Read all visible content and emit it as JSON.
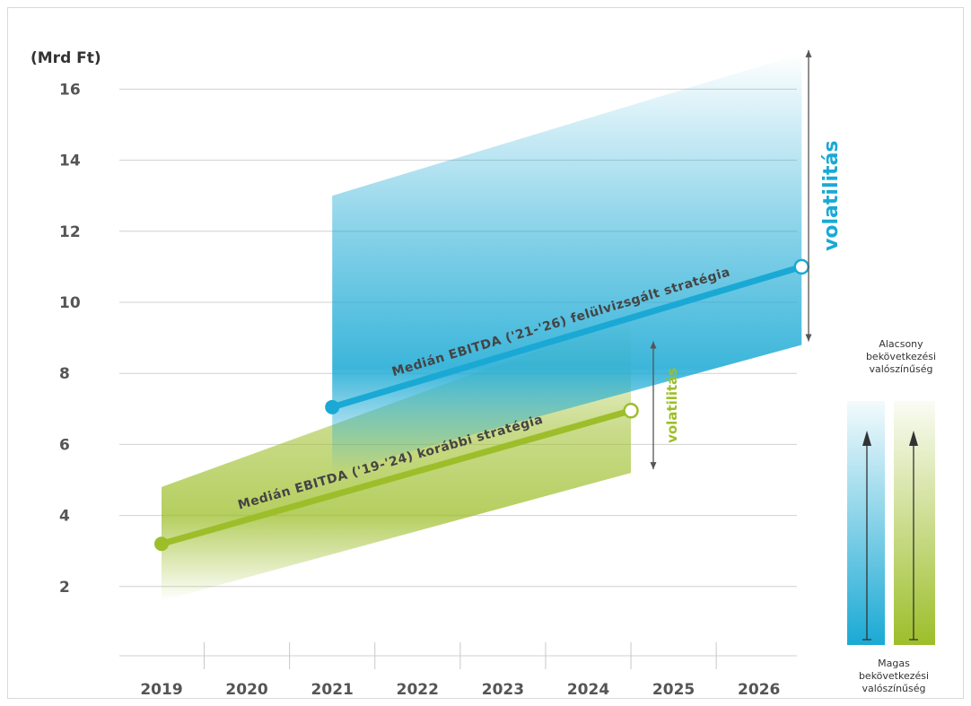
{
  "chart_data": {
    "type": "line",
    "y_unit_label": "(Mrd Ft)",
    "ylim": [
      0,
      17
    ],
    "y_ticks": [
      2,
      4,
      6,
      8,
      10,
      12,
      14,
      16
    ],
    "x_categories": [
      "2019",
      "2020",
      "2021",
      "2022",
      "2023",
      "2024",
      "2025",
      "2026"
    ],
    "grid": true,
    "series": [
      {
        "name": "Medián EBITDA ('19-'24) korábbi stratégia",
        "color": "#9dbe2a",
        "points": [
          {
            "x": 2019,
            "y": 3.2
          },
          {
            "x": 2024.5,
            "y": 6.95
          }
        ],
        "band": {
          "upper_start": 4.8,
          "upper_end": 9.6,
          "lower_start": 1.6,
          "lower_end": 5.2
        }
      },
      {
        "name": "Medián EBITDA ('21-'26) felülvizsgált stratégia",
        "color": "#1aa9d4",
        "points": [
          {
            "x": 2021,
            "y": 7.05
          },
          {
            "x": 2026.5,
            "y": 11.0
          }
        ],
        "band": {
          "upper_start": 13.0,
          "upper_end": 17.0,
          "lower_start": 5.2,
          "lower_end": 8.8
        }
      }
    ],
    "annotations": {
      "volatility_large": {
        "text": "volatilitás",
        "color": "#1aa9d4",
        "y_range": [
          8.9,
          17.1
        ]
      },
      "volatility_small": {
        "text": "volatilitás",
        "color": "#9dbe2a",
        "y_range": [
          5.3,
          8.9
        ]
      }
    },
    "legend": {
      "top_text": [
        "Alacsony",
        "bekövetkezési",
        "valószínűség"
      ],
      "bottom_text": [
        "Magas",
        "bekövetkezési",
        "valószínűség"
      ],
      "colors": [
        "#1aa9d4",
        "#9dbe2a"
      ]
    }
  }
}
